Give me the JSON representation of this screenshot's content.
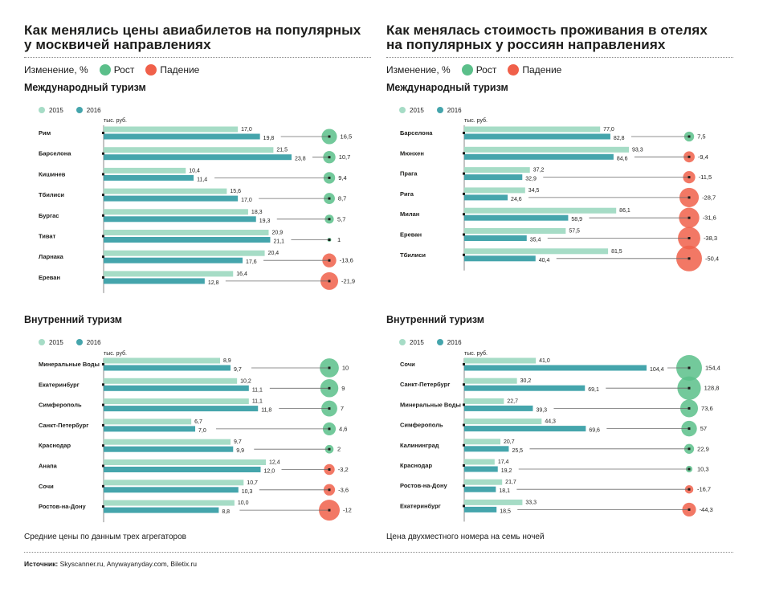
{
  "colors": {
    "bar2015": "#a6dcc6",
    "bar2016": "#45a5ac",
    "growth": "#5bbf8a",
    "decline": "#f0604a",
    "axis": "#8a8a8a",
    "text": "#1d1d1b"
  },
  "legend": {
    "change_label": "Изменение, %",
    "growth_label": "Рост",
    "decline_label": "Падение",
    "year1": "2015",
    "year2": "2016"
  },
  "left": {
    "title_line1": "Как менялись цены авиабилетов на популярных",
    "title_line2": "у москвичей направлениях",
    "footnote": "Средние цены по данным трех агрегаторов"
  },
  "right": {
    "title_line1": "Как менялась стоимость проживания в отелях",
    "title_line2": "на популярных у россиян направлениях",
    "footnote": "Цена двухместного номера на семь ночей"
  },
  "sections": {
    "international": "Международный туризм",
    "domestic": "Внутренний туризм"
  },
  "source": {
    "label": "Источник:",
    "text": " Skyscanner.ru, Anywayanyday.com, Biletix.ru"
  },
  "chart_data": [
    {
      "type": "bar",
      "title": "Как менялись цены авиабилетов на популярных у москвичей направлениях — Международный туризм",
      "unit": "тыс. руб.",
      "categories": [
        "Рим",
        "Барселона",
        "Кишинев",
        "Тбилиси",
        "Бургас",
        "Тиват",
        "Ларнака",
        "Ереван"
      ],
      "series": [
        {
          "name": "2015",
          "values": [
            17.0,
            21.5,
            10.4,
            15.6,
            18.3,
            20.9,
            20.4,
            16.4
          ],
          "labels": [
            "17,0",
            "21,5",
            "10,4",
            "15,6",
            "18,3",
            "20,9",
            "20,4",
            "16,4"
          ]
        },
        {
          "name": "2016",
          "values": [
            19.8,
            23.8,
            11.4,
            17.0,
            19.3,
            21.1,
            17.6,
            12.8
          ],
          "labels": [
            "19,8",
            "23,8",
            "11,4",
            "17,0",
            "19,3",
            "21,1",
            "17,6",
            "12,8"
          ]
        }
      ],
      "change_pct": [
        16.5,
        10.7,
        9.4,
        8.7,
        5.7,
        1,
        -13.6,
        -21.9
      ],
      "change_labels": [
        "16,5",
        "10,7",
        "9,4",
        "8,7",
        "5,7",
        "1",
        "-13,6",
        "-21,9"
      ],
      "xlim": [
        0,
        24
      ]
    },
    {
      "type": "bar",
      "title": "Как менялась стоимость проживания в отелях на популярных у россиян направлениях — Международный туризм",
      "unit": "тыс. руб.",
      "categories": [
        "Барселона",
        "Мюнхен",
        "Прага",
        "Рига",
        "Милан",
        "Ереван",
        "Тбилиси"
      ],
      "series": [
        {
          "name": "2015",
          "values": [
            77.0,
            93.3,
            37.2,
            34.5,
            86.1,
            57.5,
            81.5
          ],
          "labels": [
            "77,0",
            "93,3",
            "37,2",
            "34,5",
            "86,1",
            "57,5",
            "81,5"
          ]
        },
        {
          "name": "2016",
          "values": [
            82.8,
            84.6,
            32.9,
            24.6,
            58.9,
            35.4,
            40.4
          ],
          "labels": [
            "82,8",
            "84,6",
            "32,9",
            "24,6",
            "58,9",
            "35,4",
            "40,4"
          ]
        }
      ],
      "change_pct": [
        7.5,
        -9.4,
        -11.5,
        -28.7,
        -31.6,
        -38.3,
        -50.4
      ],
      "change_labels": [
        "7,5",
        "-9,4",
        "-11,5",
        "-28,7",
        "-31,6",
        "-38,3",
        "-50,4"
      ],
      "xlim": [
        0,
        95
      ]
    },
    {
      "type": "bar",
      "title": "Как менялись цены авиабилетов на популярных у москвичей направлениях — Внутренний туризм",
      "unit": "тыс. руб.",
      "categories": [
        "Минеральные Воды",
        "Екатеринбург",
        "Симферополь",
        "Санкт-Петербург",
        "Краснодар",
        "Анапа",
        "Сочи",
        "Ростов-на-Дону"
      ],
      "series": [
        {
          "name": "2015",
          "values": [
            8.9,
            10.2,
            11.1,
            6.7,
            9.7,
            12.4,
            10.7,
            10.0
          ],
          "labels": [
            "8,9",
            "10,2",
            "11,1",
            "6,7",
            "9,7",
            "12,4",
            "10,7",
            "10,0"
          ]
        },
        {
          "name": "2016",
          "values": [
            9.7,
            11.1,
            11.8,
            7.0,
            9.9,
            12.0,
            10.3,
            8.8
          ],
          "labels": [
            "9,7",
            "11,1",
            "11,8",
            "7,0",
            "9,9",
            "12,0",
            "10,3",
            "8,8"
          ]
        }
      ],
      "change_pct": [
        10,
        9,
        7,
        4.6,
        2,
        -3.2,
        -3.6,
        -12
      ],
      "change_labels": [
        "10",
        "9",
        "7",
        "4,6",
        "2",
        "-3,2",
        "-3,6",
        "-12"
      ],
      "xlim": [
        0,
        12.5
      ]
    },
    {
      "type": "bar",
      "title": "Как менялась стоимость проживания в отелях на популярных у россиян направлениях — Внутренний туризм",
      "unit": "тыс. руб.",
      "categories": [
        "Сочи",
        "Санкт-Петербург",
        "Минеральные Воды",
        "Симферополь",
        "Калининград",
        "Краснодар",
        "Ростов-на-Дону",
        "Екатеринбург"
      ],
      "series": [
        {
          "name": "2015",
          "values": [
            41.0,
            30.2,
            22.7,
            44.3,
            20.7,
            17.4,
            21.7,
            33.3
          ],
          "labels": [
            "41,0",
            "30,2",
            "22,7",
            "44,3",
            "20,7",
            "17,4",
            "21,7",
            "33,3"
          ]
        },
        {
          "name": "2016",
          "values": [
            104.4,
            69.1,
            39.3,
            69.6,
            25.5,
            19.2,
            18.1,
            18.5
          ],
          "labels": [
            "104,4",
            "69,1",
            "39,3",
            "69,6",
            "25,5",
            "19,2",
            "18,1",
            "18,5"
          ]
        }
      ],
      "change_pct": [
        154.4,
        128.8,
        73.6,
        57,
        22.9,
        10.3,
        -16.7,
        -44.3
      ],
      "change_labels": [
        "154,4",
        "128,8",
        "73,6",
        "57",
        "22,9",
        "10,3",
        "-16,7",
        "-44,3"
      ],
      "xlim": [
        0,
        105
      ]
    }
  ]
}
